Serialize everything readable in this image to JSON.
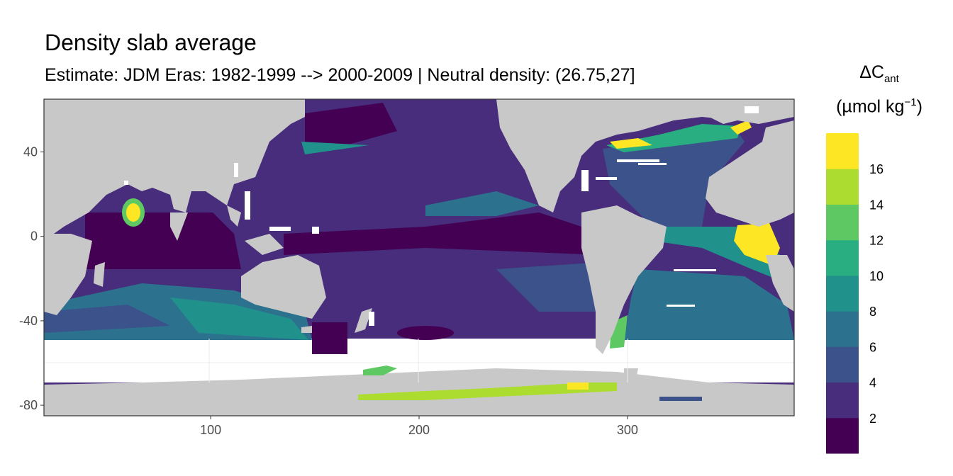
{
  "title": "Density slab average",
  "subtitle": "Estimate: JDM Eras: 1982-1999 --> 2000-2009 | Neutral density: (26.75,27]",
  "legend": {
    "title_main": "ΔC",
    "title_sub": "ant",
    "title_unit_prefix": "(µmol kg",
    "title_unit_sup": "−1",
    "title_unit_suffix": ")",
    "breaks": [
      "2",
      "4",
      "6",
      "8",
      "10",
      "12",
      "14",
      "16"
    ],
    "colors": [
      "#440154",
      "#472d7b",
      "#3b528b",
      "#2c728e",
      "#21918c",
      "#28ae80",
      "#5ec962",
      "#addc30",
      "#fde725"
    ]
  },
  "chart_data": {
    "type": "heatmap",
    "xlabel": "",
    "ylabel": "",
    "x_ticks": [
      100,
      200,
      300
    ],
    "y_ticks": [
      40,
      0,
      -40,
      -80
    ],
    "xlim": [
      20,
      380
    ],
    "ylim": [
      -85,
      65
    ],
    "colorscale": "viridis",
    "value_range": [
      0,
      18
    ],
    "land_color": "#c8c8c8",
    "features": [
      {
        "region": "Arabian Sea",
        "level": "high (>16)"
      },
      {
        "region": "Tropical Atlantic (Gulf of Guinea)",
        "level": "high (>16)"
      },
      {
        "region": "North Atlantic",
        "level": "high (14-16)"
      },
      {
        "region": "Antarctic margin Ross/Weddell",
        "level": "12-16"
      },
      {
        "region": "Southern Indian Ocean",
        "level": "8-10"
      },
      {
        "region": "Pacific Ocean",
        "level": "2-4"
      }
    ]
  }
}
